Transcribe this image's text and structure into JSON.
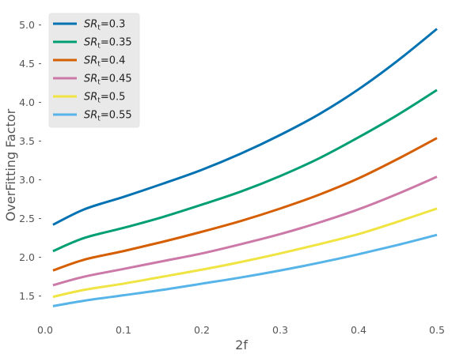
{
  "chart_data": {
    "type": "line",
    "title": "",
    "xlabel": "2f",
    "ylabel": "OverFitting Factor",
    "xlim": [
      0.0,
      0.5
    ],
    "ylim": [
      1.2,
      5.2
    ],
    "xticks": [
      0.0,
      0.1,
      0.2,
      0.3,
      0.4,
      0.5
    ],
    "xtick_labels": [
      "0.0",
      "0.1",
      "0.2",
      "0.3",
      "0.4",
      "0.5"
    ],
    "yticks": [
      1.5,
      2.0,
      2.5,
      3.0,
      3.5,
      4.0,
      4.5,
      5.0
    ],
    "ytick_labels": [
      "1.5",
      "2.0",
      "2.5",
      "3.0",
      "3.5",
      "4.0",
      "4.5",
      "5.0"
    ],
    "grid": false,
    "legend_position": "top-left",
    "x": [
      0.01,
      0.05,
      0.1,
      0.15,
      0.2,
      0.25,
      0.3,
      0.35,
      0.4,
      0.45,
      0.5
    ],
    "series": [
      {
        "name_prefix": "SR",
        "name_subscript": "t",
        "name_suffix": "=0.3",
        "color": "#0072B2",
        "values": [
          2.42,
          2.62,
          2.78,
          2.95,
          3.13,
          3.34,
          3.58,
          3.85,
          4.17,
          4.54,
          4.95
        ]
      },
      {
        "name_prefix": "SR",
        "name_subscript": "t",
        "name_suffix": "=0.35",
        "color": "#009E73",
        "values": [
          2.08,
          2.25,
          2.38,
          2.52,
          2.68,
          2.85,
          3.05,
          3.28,
          3.55,
          3.84,
          4.16
        ]
      },
      {
        "name_prefix": "SR",
        "name_subscript": "t",
        "name_suffix": "=0.4",
        "color": "#D55E00",
        "values": [
          1.83,
          1.97,
          2.08,
          2.2,
          2.33,
          2.47,
          2.63,
          2.81,
          3.02,
          3.27,
          3.54
        ]
      },
      {
        "name_prefix": "SR",
        "name_subscript": "t",
        "name_suffix": "=0.45",
        "color": "#CC79A7",
        "values": [
          1.64,
          1.75,
          1.85,
          1.95,
          2.05,
          2.17,
          2.3,
          2.45,
          2.62,
          2.82,
          3.04
        ]
      },
      {
        "name_prefix": "SR",
        "name_subscript": "t",
        "name_suffix": "=0.5",
        "color": "#F0E442",
        "values": [
          1.49,
          1.58,
          1.66,
          1.75,
          1.84,
          1.94,
          2.05,
          2.17,
          2.3,
          2.46,
          2.63
        ]
      },
      {
        "name_prefix": "SR",
        "name_subscript": "t",
        "name_suffix": "=0.55",
        "color": "#56B4E9",
        "values": [
          1.37,
          1.44,
          1.51,
          1.58,
          1.66,
          1.74,
          1.83,
          1.93,
          2.04,
          2.16,
          2.29
        ]
      }
    ]
  }
}
